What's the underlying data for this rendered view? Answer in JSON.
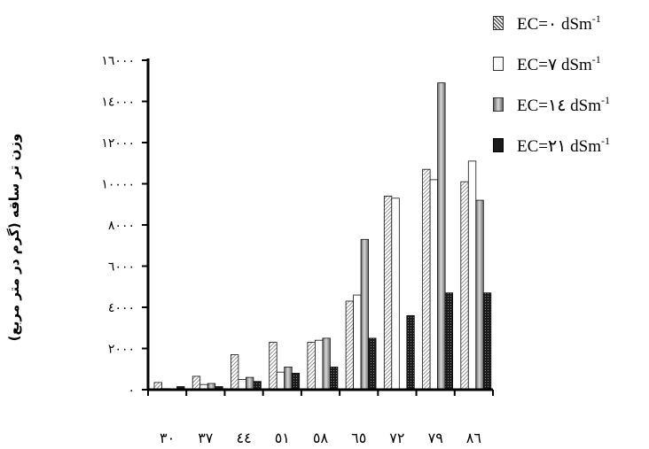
{
  "chart_data": {
    "type": "bar",
    "ylabel": "وزن تر ساقه (گرم در متر مربع)",
    "xlabel": "",
    "categories": [
      "۳۰",
      "۳۷",
      "٤٤",
      "٥١",
      "٥۸",
      "٦٥",
      "۷۲",
      "۷۹",
      "۸٦"
    ],
    "ylim": [
      0,
      16000
    ],
    "y_ticks": [
      0,
      2000,
      4000,
      6000,
      8000,
      10000,
      12000,
      14000,
      16000
    ],
    "y_tick_labels": [
      "۰",
      "۲۰۰۰",
      "٤۰۰۰",
      "٦۰۰۰",
      "۸۰۰۰",
      "۱۰۰۰۰",
      "۱۲۰۰۰",
      "۱٤۰۰۰",
      "۱٦۰۰۰"
    ],
    "legend_position": "top-right",
    "series": [
      {
        "name": "EC=۰ dSm",
        "sup": "-1",
        "pattern": "hatch",
        "values": [
          350,
          650,
          1700,
          2300,
          2300,
          4300,
          9400,
          10700,
          10100
        ]
      },
      {
        "name": "EC=۷ dSm",
        "sup": "-1",
        "pattern": "white",
        "values": [
          50,
          250,
          500,
          850,
          2400,
          4600,
          9300,
          10200,
          11100
        ]
      },
      {
        "name": "EC=۱٤ dSm",
        "sup": "-1",
        "pattern": "gray",
        "values": [
          20,
          300,
          600,
          1100,
          2500,
          7300,
          null,
          14900,
          9200
        ]
      },
      {
        "name": "EC=۲۱ dSm",
        "sup": "-1",
        "pattern": "dark",
        "values": [
          150,
          150,
          400,
          800,
          1100,
          2500,
          3600,
          4700,
          4700
        ]
      }
    ]
  }
}
